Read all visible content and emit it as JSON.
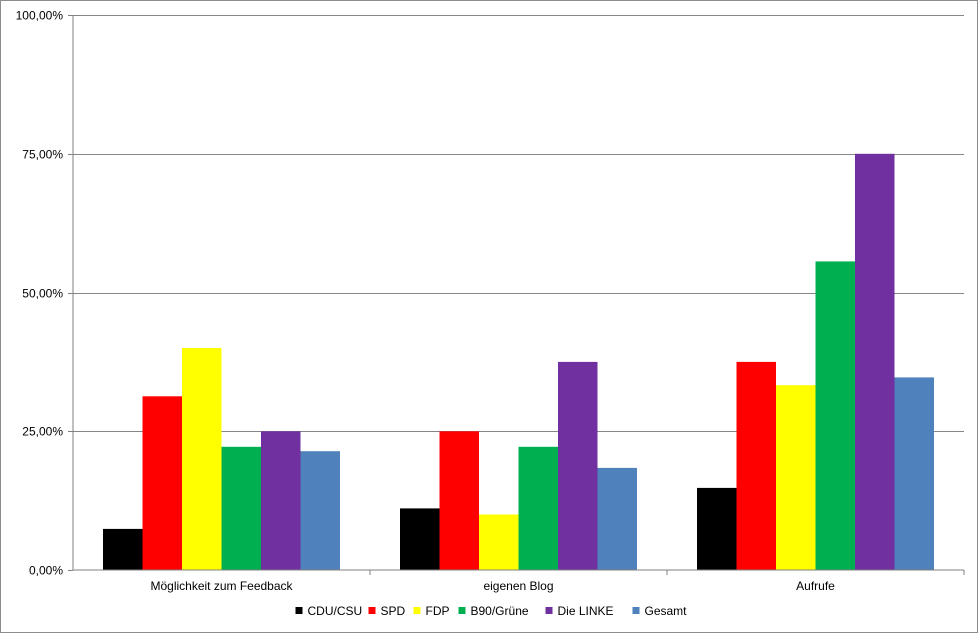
{
  "chart_data": {
    "type": "bar",
    "categories": [
      "Möglichkeit zum Feedback",
      "eigenen Blog",
      "Aufrufe"
    ],
    "series": [
      {
        "name": "CDU/CSU",
        "color": "#000000",
        "values": [
          7.4,
          11.1,
          14.8
        ]
      },
      {
        "name": "SPD",
        "color": "#ff0000",
        "values": [
          31.3,
          25.0,
          37.5
        ]
      },
      {
        "name": "FDP",
        "color": "#ffff00",
        "values": [
          40.0,
          10.0,
          33.3
        ]
      },
      {
        "name": "B90/Grüne",
        "color": "#00b050",
        "values": [
          22.2,
          22.2,
          55.6
        ]
      },
      {
        "name": "Die LINKE",
        "color": "#7030a0",
        "values": [
          25.0,
          37.5,
          75.0
        ]
      },
      {
        "name": "Gesamt",
        "color": "#4f81bd",
        "values": [
          21.4,
          18.4,
          34.7
        ]
      }
    ],
    "ylim": [
      0,
      100
    ],
    "yticks": [
      "0,00%",
      "25,00%",
      "50,00%",
      "75,00%",
      "100,00%"
    ],
    "ytick_values": [
      0,
      25,
      50,
      75,
      100
    ],
    "grid": true,
    "legend": "bottom"
  }
}
